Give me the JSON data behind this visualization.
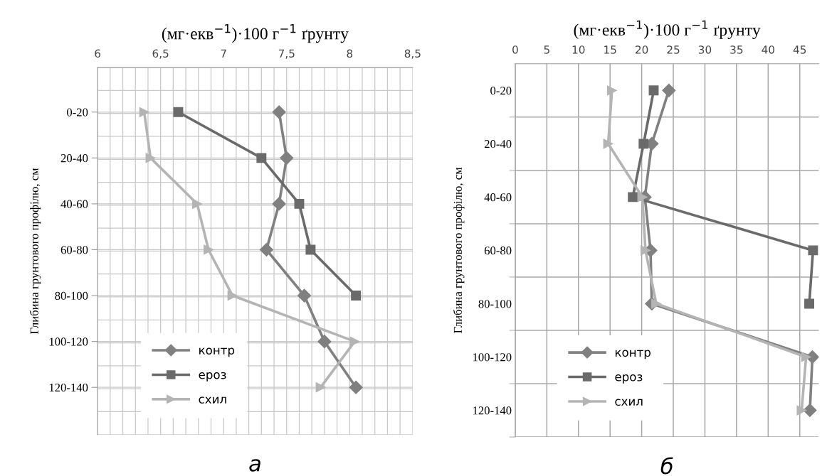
{
  "chart_data": [
    {
      "type": "line",
      "xlabel": "(мг·екв$^{−1}$)·100 г$^{−1}$ ґрунту",
      "ylabel": "Глибина грунтового профілю, см",
      "annotations": [
        "а"
      ],
      "orientation": "horizontal",
      "categories": [
        "0-20",
        "20-40",
        "40-60",
        "60-80",
        "80-100",
        "100-120",
        "120-140"
      ],
      "series": [
        {
          "name": "контр",
          "color": "#808080",
          "marker": "diamond",
          "values": [
            7.44,
            7.5,
            7.44,
            7.34,
            7.64,
            7.8,
            8.05
          ]
        },
        {
          "name": "ероз",
          "color": "#6a6a6a",
          "marker": "square",
          "values": [
            6.64,
            7.3,
            7.6,
            7.69,
            8.05,
            null,
            null
          ]
        },
        {
          "name": "схил",
          "color": "#b4b4b4",
          "marker": "triangle",
          "values": [
            6.37,
            6.42,
            6.79,
            6.88,
            7.07,
            8.04,
            7.77
          ]
        }
      ],
      "xlim": [
        6,
        8.5
      ],
      "xticks": [
        6,
        {
          "value": 6.5,
          "label": "6,5"
        },
        7,
        {
          "value": 7.5,
          "label": "7,5"
        },
        8,
        {
          "value": 8.5,
          "label": "8,5"
        }
      ],
      "grid": true,
      "legend": "bottom left"
    },
    {
      "type": "line",
      "xlabel": "(мг·екв$^{−1}$)·100 г$^{−1}$ ґрунту",
      "ylabel": "Глибина грунтового профілю, см",
      "annotations": [
        "б"
      ],
      "orientation": "horizontal",
      "categories": [
        "0-20",
        "20-40",
        "40-60",
        "60-80",
        "80-100",
        "100-120",
        "120-140"
      ],
      "series": [
        {
          "name": "контр",
          "color": "#808080",
          "marker": "diamond",
          "values": [
            24.3,
            21.6,
            20.5,
            21.4,
            21.6,
            47.0,
            46.6
          ]
        },
        {
          "name": "ероз",
          "color": "#6a6a6a",
          "marker": "square",
          "values": [
            21.9,
            20.3,
            18.6,
            47.1,
            46.5,
            null,
            null
          ]
        },
        {
          "name": "схил",
          "color": "#b4b4b4",
          "marker": "triangle",
          "values": [
            15.3,
            14.7,
            20.1,
            20.6,
            22.3,
            46.0,
            45.3
          ]
        }
      ],
      "xlim": [
        0,
        48
      ],
      "xticks": [
        0,
        5,
        10,
        15,
        20,
        25,
        30,
        35,
        40,
        45
      ],
      "grid": true,
      "legend": "bottom left"
    }
  ]
}
